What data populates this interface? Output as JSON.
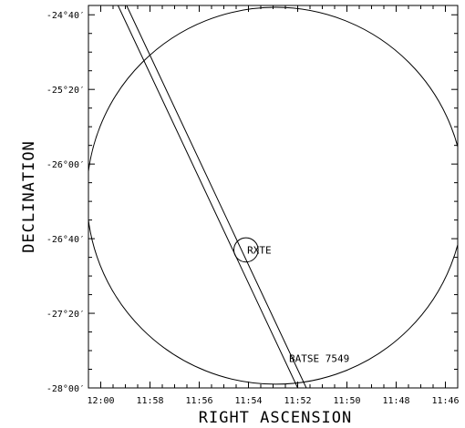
{
  "chart_data": {
    "type": "sky-map",
    "xlabel": "RIGHT ASCENSION",
    "ylabel": "DECLINATION",
    "x_ticks": [
      "12:00",
      "11:58",
      "11:56",
      "11:54",
      "11:52",
      "11:50",
      "11:48",
      "11:46"
    ],
    "y_ticks": [
      "-24°40′",
      "-25°20′",
      "-26°00′",
      "-26°40′",
      "-27°20′",
      "-28°00′"
    ],
    "x_range_ra_minutes": [
      720.5,
      705.5
    ],
    "y_range_dec_minutes": [
      -1680,
      -1475
    ],
    "annotations": [
      {
        "text": "RXTE",
        "ra_minutes": 714.05,
        "dec_minutes": -1608
      },
      {
        "text": "BATSE 7549",
        "ra_minutes": 712.35,
        "dec_minutes": -1666
      }
    ],
    "shapes": {
      "large_circle": {
        "center_ra_minutes": 712.9,
        "center_dec_minutes": -1577,
        "radius_dec_minutes": 101
      },
      "small_circle": {
        "center_ra_minutes": 714.1,
        "center_dec_minutes": -1606,
        "radius_dec_minutes": 6.5
      },
      "ipn_annulus": [
        {
          "p1": {
            "ra_minutes": 719.3,
            "dec_minutes": -1475
          },
          "p2": {
            "ra_minutes": 712.0,
            "dec_minutes": -1680
          }
        },
        {
          "p1": {
            "ra_minutes": 718.95,
            "dec_minutes": -1475
          },
          "p2": {
            "ra_minutes": 711.65,
            "dec_minutes": -1680
          }
        }
      ]
    },
    "grid": false
  }
}
